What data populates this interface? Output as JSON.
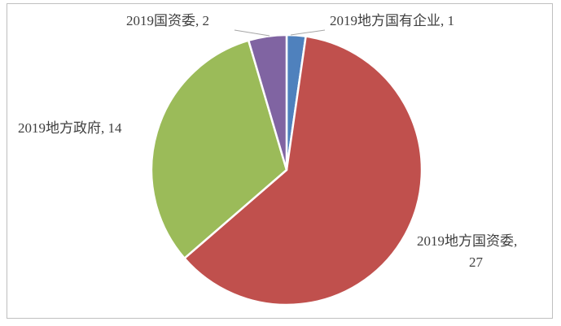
{
  "chart_data": {
    "type": "pie",
    "slices": [
      {
        "category": "2019地方国有企业",
        "value": 1,
        "color": "#4f81bd"
      },
      {
        "category": "2019地方国资委",
        "value": 27,
        "color": "#c0504d"
      },
      {
        "category": "2019地方政府",
        "value": 14,
        "color": "#9bbb59"
      },
      {
        "category": "2019国资委",
        "value": 2,
        "color": "#8064a2"
      }
    ],
    "data_labels": [
      {
        "lines": [
          "2019地方国有企业, 1"
        ]
      },
      {
        "lines": [
          "2019地方国资委,",
          "27"
        ]
      },
      {
        "lines": [
          "2019地方政府, 14"
        ]
      },
      {
        "lines": [
          "2019国资委, 2"
        ]
      }
    ],
    "legend": "none",
    "start_angle_deg": 0,
    "direction": "clockwise"
  }
}
